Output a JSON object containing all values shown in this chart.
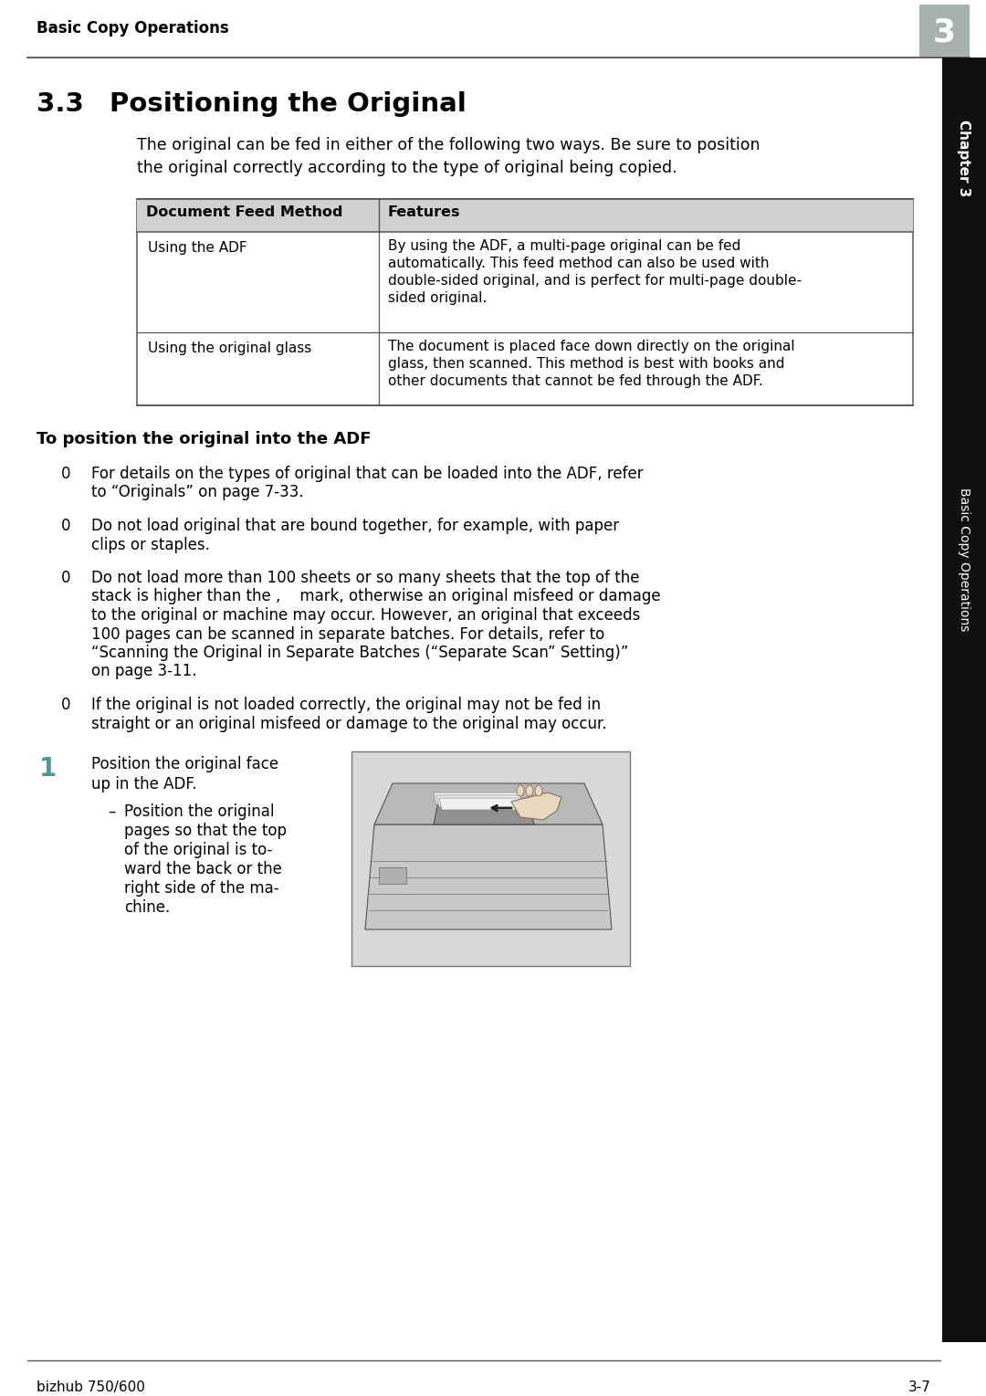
{
  "page_bg": "#ffffff",
  "header_text": "Basic Copy Operations",
  "header_num": "3",
  "header_num_bg": "#a8b0b0",
  "section_num": "3.3",
  "section_title": "Positioning the Original",
  "intro_line1": "The original can be fed in either of the following two ways. Be sure to position",
  "intro_line2": "the original correctly according to the type of original being copied.",
  "table_header_bg": "#d0d0d0",
  "table_col1_header": "Document Feed Method",
  "table_col2_header": "Features",
  "table_row1_col1": "Using the ADF",
  "table_row1_col2_lines": [
    "By using the ADF, a multi-page original can be fed",
    "automatically. This feed method can also be used with",
    "double-sided original, and is perfect for multi-page double-",
    "sided original."
  ],
  "table_row2_col1": "Using the original glass",
  "table_row2_col2_lines": [
    "The document is placed face down directly on the original",
    "glass, then scanned. This method is best with books and",
    "other documents that cannot be fed through the ADF."
  ],
  "subsection_title": "To position the original into the ADF",
  "bullet0": "0",
  "bullet_lines": [
    [
      "For details on the types of original that can be loaded into the ADF, refer",
      "to “Originals” on page 7-33."
    ],
    [
      "Do not load original that are bound together, for example, with paper",
      "clips or staples."
    ],
    [
      "Do not load more than 100 sheets or so many sheets that the top of the",
      "stack is higher than the ,    mark, otherwise an original misfeed or damage",
      "to the original or machine may occur. However, an original that exceeds",
      "100 pages can be scanned in separate batches. For details, refer to",
      "“Scanning the Original in Separate Batches (“Separate Scan” Setting)”",
      "on page 3-11."
    ],
    [
      "If the original is not loaded correctly, the original may not be fed in",
      "straight or an original misfeed or damage to the original may occur."
    ]
  ],
  "step1_num": "1",
  "step1_lines": [
    "Position the original face",
    "up in the ADF."
  ],
  "step1_sub_lines": [
    "Position the original",
    "pages so that the top",
    "of the original is to-",
    "ward the back or the",
    "right side of the ma-",
    "chine."
  ],
  "sidebar_chapter": "Chapter 3",
  "sidebar_text": "Basic Copy Operations",
  "footer_left": "bizhub 750/600",
  "footer_right": "3-7",
  "text_color": "#000000",
  "border_color": "#555555",
  "step1_num_color": "#4a9a9a"
}
